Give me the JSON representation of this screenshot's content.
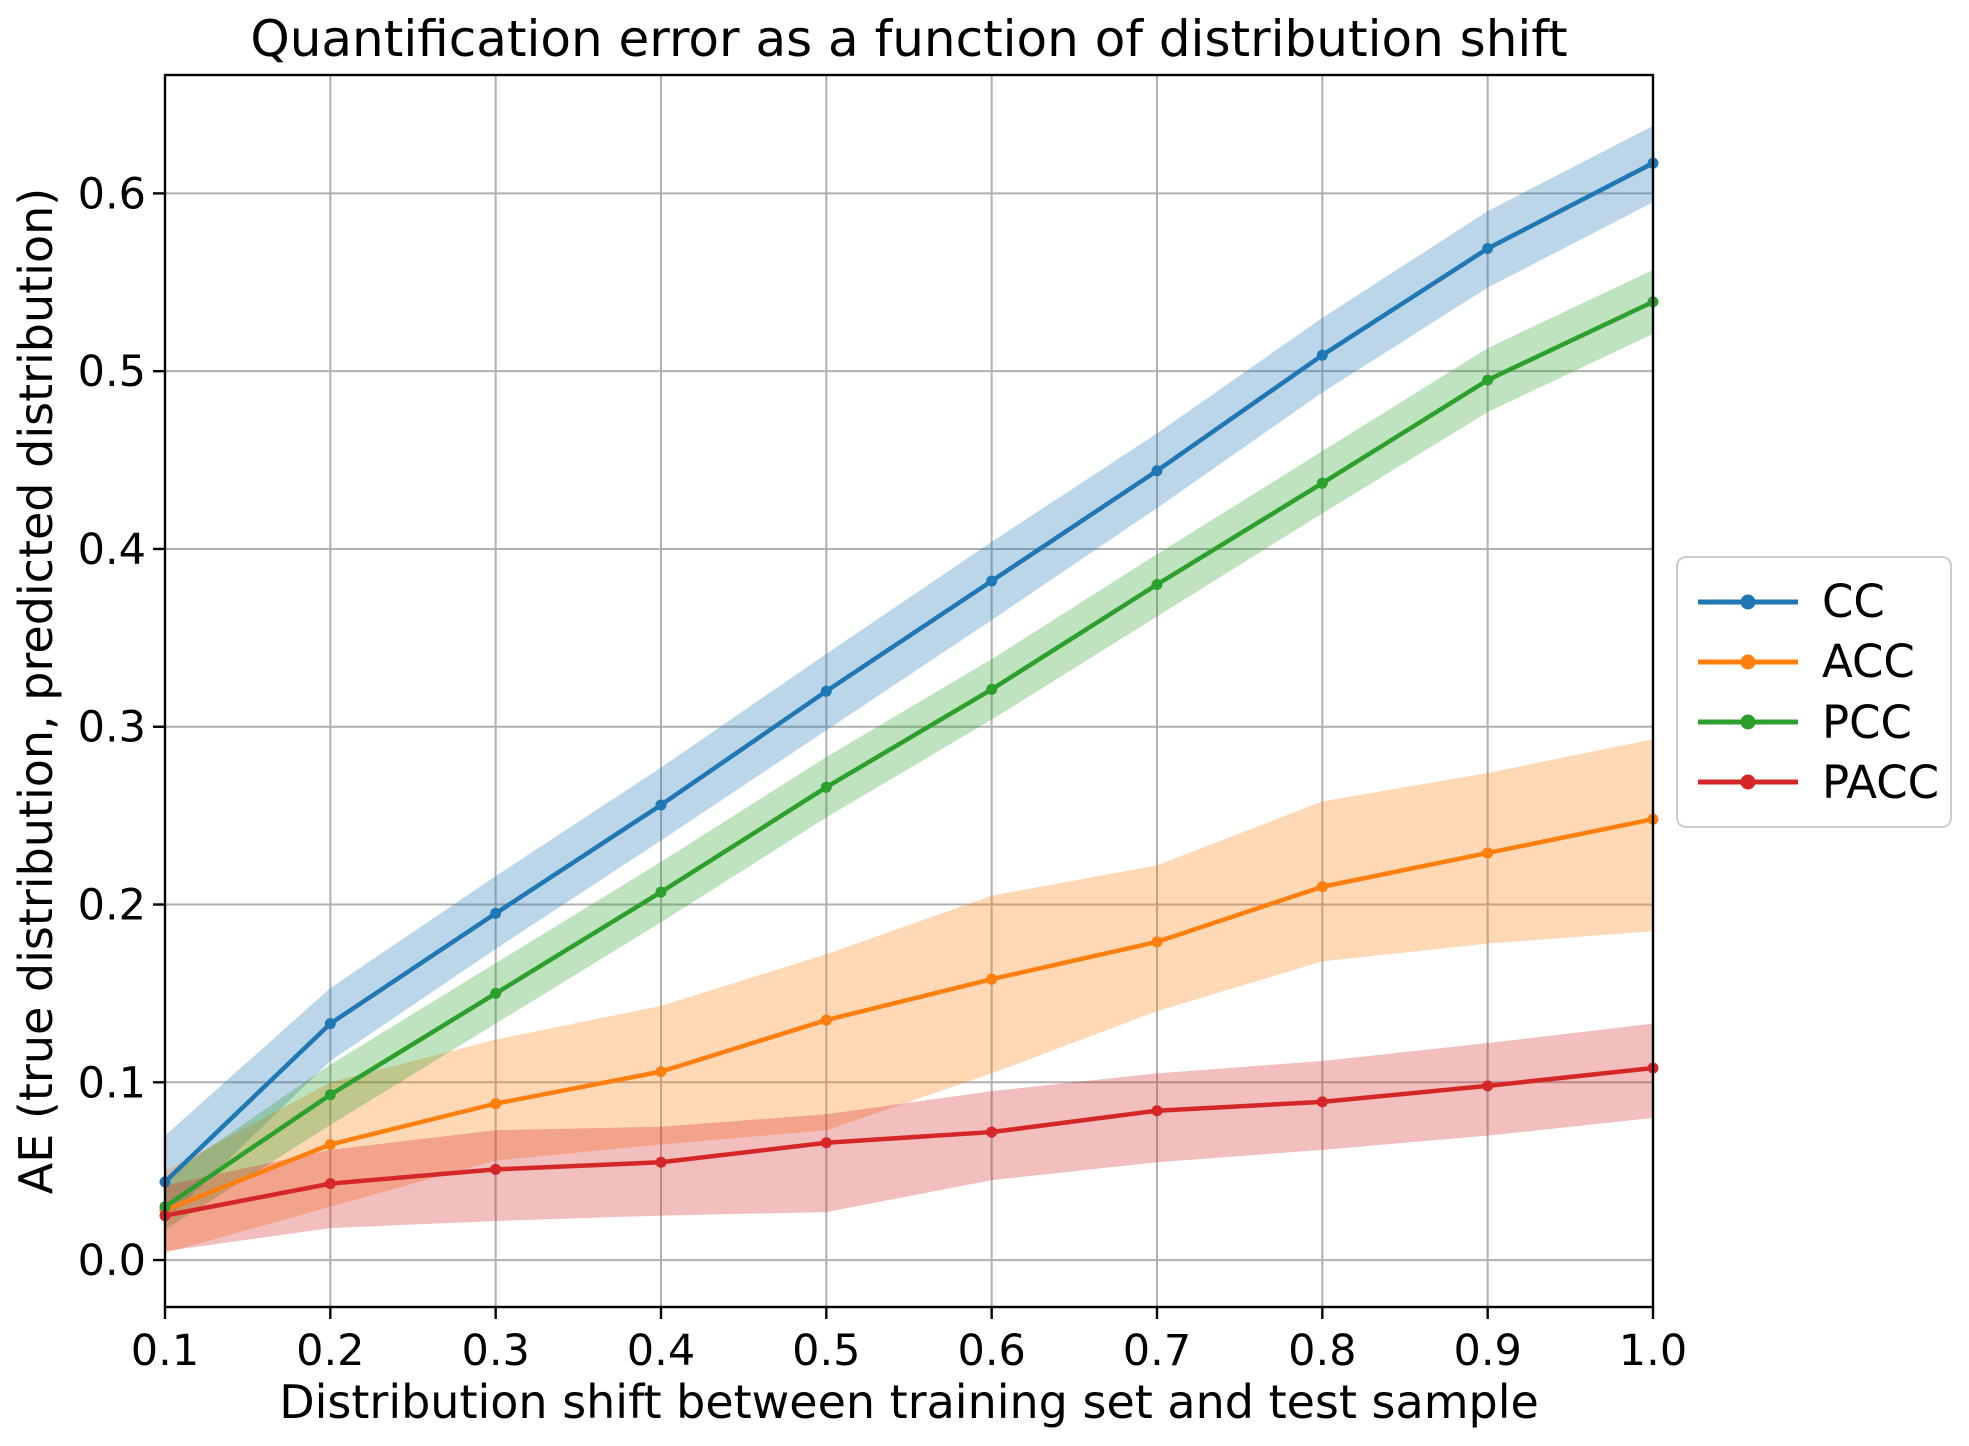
{
  "title": "Quantification error as a function of distribution shift",
  "axes": {
    "xlabel": "Distribution shift between training set and test sample",
    "ylabel": "AE (true distribution, predicted distribution)",
    "x_ticks": [
      "0.1",
      "0.2",
      "0.3",
      "0.4",
      "0.5",
      "0.6",
      "0.7",
      "0.8",
      "0.9",
      "1.0"
    ],
    "y_ticks": [
      "0.0",
      "0.1",
      "0.2",
      "0.3",
      "0.4",
      "0.5",
      "0.6"
    ]
  },
  "legend": {
    "position": "outside-right-center",
    "items": [
      {
        "label": "CC",
        "color": "#1f77b4"
      },
      {
        "label": "ACC",
        "color": "#ff7f0e"
      },
      {
        "label": "PCC",
        "color": "#2ca02c"
      },
      {
        "label": "PACC",
        "color": "#d62728"
      }
    ]
  },
  "colors": {
    "grid": "#b0b0b0",
    "spine": "#000000",
    "background": "#ffffff",
    "band_opacity": 0.3
  },
  "chart_data": {
    "type": "line",
    "title": "Quantification error as a function of distribution shift",
    "xlabel": "Distribution shift between training set and test sample",
    "ylabel": "AE (true distribution, predicted distribution)",
    "x": [
      0.1,
      0.2,
      0.3,
      0.4,
      0.5,
      0.6,
      0.7,
      0.8,
      0.9,
      1.0
    ],
    "xlim": [
      0.1,
      1.0
    ],
    "ylim": [
      -0.0264,
      0.6666
    ],
    "grid": true,
    "legend_position": "right outside, center",
    "marker": "dot",
    "series": [
      {
        "name": "CC",
        "color": "#1f77b4",
        "values": [
          0.044,
          0.133,
          0.195,
          0.256,
          0.32,
          0.382,
          0.444,
          0.509,
          0.569,
          0.617
        ],
        "band_lower": [
          0.022,
          0.112,
          0.175,
          0.236,
          0.298,
          0.36,
          0.423,
          0.488,
          0.547,
          0.595
        ],
        "band_upper": [
          0.07,
          0.153,
          0.216,
          0.277,
          0.341,
          0.404,
          0.465,
          0.53,
          0.59,
          0.638
        ]
      },
      {
        "name": "ACC",
        "color": "#ff7f0e",
        "values": [
          0.028,
          0.065,
          0.088,
          0.106,
          0.135,
          0.158,
          0.179,
          0.21,
          0.229,
          0.248
        ],
        "band_lower": [
          0.004,
          0.03,
          0.056,
          0.065,
          0.073,
          0.105,
          0.14,
          0.168,
          0.178,
          0.185
        ],
        "band_upper": [
          0.05,
          0.1,
          0.124,
          0.143,
          0.172,
          0.205,
          0.222,
          0.258,
          0.274,
          0.293
        ]
      },
      {
        "name": "PCC",
        "color": "#2ca02c",
        "values": [
          0.03,
          0.093,
          0.15,
          0.207,
          0.266,
          0.321,
          0.38,
          0.437,
          0.495,
          0.539
        ],
        "band_lower": [
          0.017,
          0.076,
          0.133,
          0.19,
          0.249,
          0.304,
          0.362,
          0.42,
          0.477,
          0.521
        ],
        "band_upper": [
          0.046,
          0.11,
          0.167,
          0.224,
          0.283,
          0.338,
          0.397,
          0.455,
          0.513,
          0.557
        ]
      },
      {
        "name": "PACC",
        "color": "#d62728",
        "values": [
          0.025,
          0.043,
          0.051,
          0.055,
          0.066,
          0.072,
          0.084,
          0.089,
          0.098,
          0.108
        ],
        "band_lower": [
          0.005,
          0.018,
          0.022,
          0.025,
          0.027,
          0.045,
          0.055,
          0.062,
          0.07,
          0.08
        ],
        "band_upper": [
          0.042,
          0.062,
          0.073,
          0.075,
          0.082,
          0.095,
          0.105,
          0.112,
          0.122,
          0.133
        ]
      }
    ]
  }
}
